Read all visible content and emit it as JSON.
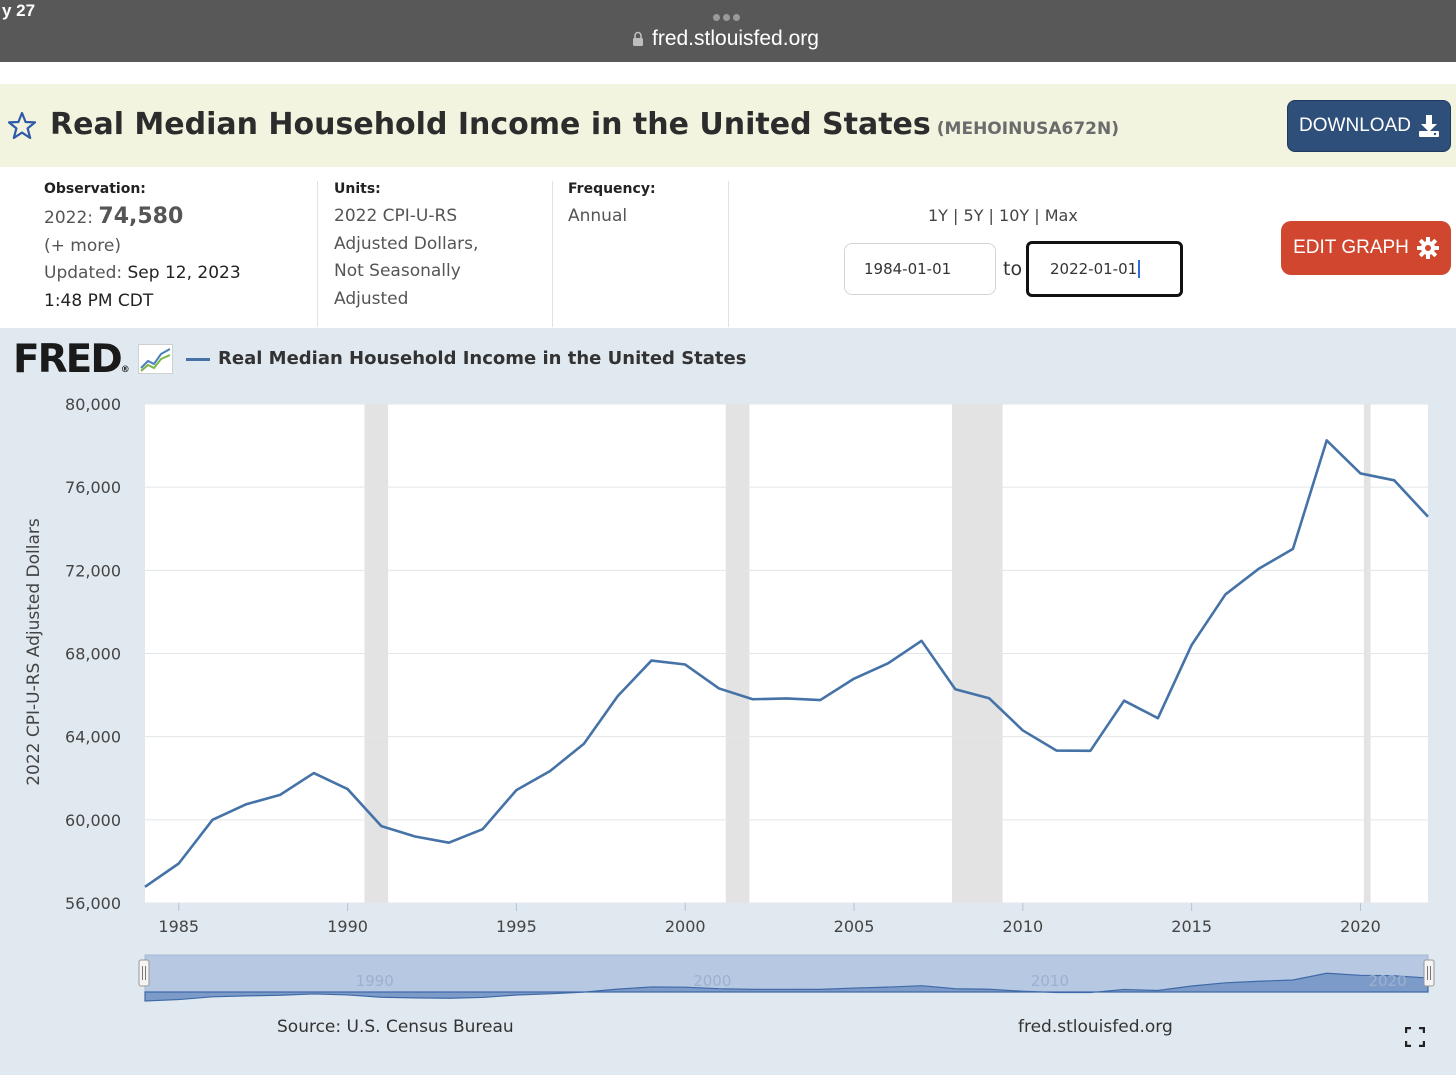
{
  "browser": {
    "status_time": "y 27",
    "url": "fred.stlouisfed.org"
  },
  "header": {
    "title": "Real Median Household Income in the United States",
    "series_id": "(MEHOINUSA672N)",
    "download_label": "DOWNLOAD"
  },
  "observation": {
    "label": "Observation:",
    "period": "2022:",
    "value": "74,580",
    "more": "(+ more)",
    "updated_label": "Updated:",
    "updated_date": "Sep 12, 2023",
    "updated_time": "1:48 PM CDT"
  },
  "units": {
    "label": "Units:",
    "line1": "2022 CPI-U-RS",
    "line2": "Adjusted Dollars,",
    "line3": "Not Seasonally",
    "line4": "Adjusted"
  },
  "frequency": {
    "label": "Frequency:",
    "value": "Annual"
  },
  "range": {
    "options": [
      "1Y",
      "5Y",
      "10Y",
      "Max"
    ],
    "start": "1984-01-01",
    "to": "to",
    "end": "2022-01-01"
  },
  "edit_label": "EDIT GRAPH",
  "legend": {
    "logo": "FRED",
    "series": "Real Median Household Income in the United States"
  },
  "footer": {
    "source": "Source: U.S. Census Bureau",
    "site": "fred.stlouisfed.org"
  },
  "colors": {
    "series": "#4572a7",
    "recession": "#e3e3e3",
    "download": "#2e4f7a",
    "edit": "#d1462f",
    "graph_bg": "#e1e9f0",
    "title_bg": "#f2f4e0"
  },
  "chart_data": {
    "type": "line",
    "title": "Real Median Household Income in the United States",
    "ylabel": "2022 CPI-U-RS Adjusted Dollars",
    "xlabel": "",
    "ylim": [
      56000,
      80000
    ],
    "xlim": [
      1984,
      2022
    ],
    "y_ticks": [
      "80,000",
      "76,000",
      "72,000",
      "68,000",
      "64,000",
      "60,000",
      "56,000"
    ],
    "y_tick_values": [
      80000,
      76000,
      72000,
      68000,
      64000,
      60000,
      56000
    ],
    "x_ticks": [
      "1985",
      "1990",
      "1995",
      "2000",
      "2005",
      "2010",
      "2015",
      "2020"
    ],
    "x_tick_values": [
      1985,
      1990,
      1995,
      2000,
      2005,
      2010,
      2015,
      2020
    ],
    "grid": true,
    "recessions": [
      [
        1990.5,
        1991.2
      ],
      [
        2001.2,
        2001.9
      ],
      [
        2007.9,
        2009.4
      ],
      [
        2020.1,
        2020.3
      ]
    ],
    "navigator_labels": [
      "1990",
      "2000",
      "2010",
      "2020"
    ],
    "series": [
      {
        "name": "Real Median Household Income in the United States",
        "x": [
          1984,
          1985,
          1986,
          1987,
          1988,
          1989,
          1990,
          1991,
          1992,
          1993,
          1994,
          1995,
          1996,
          1997,
          1998,
          1999,
          2000,
          2001,
          2002,
          2003,
          2004,
          2005,
          2006,
          2007,
          2008,
          2009,
          2010,
          2011,
          2012,
          2013,
          2014,
          2015,
          2016,
          2017,
          2018,
          2019,
          2020,
          2021,
          2022
        ],
        "values": [
          56780,
          57900,
          60000,
          60750,
          61200,
          62250,
          61480,
          59700,
          59200,
          58900,
          59550,
          61430,
          62350,
          63660,
          65950,
          67660,
          67470,
          66320,
          65800,
          65840,
          65760,
          66790,
          67520,
          68610,
          66280,
          65850,
          64300,
          63330,
          63320,
          65730,
          64890,
          68410,
          70840,
          72090,
          73030,
          78250,
          76660,
          76330,
          74580
        ]
      }
    ]
  }
}
